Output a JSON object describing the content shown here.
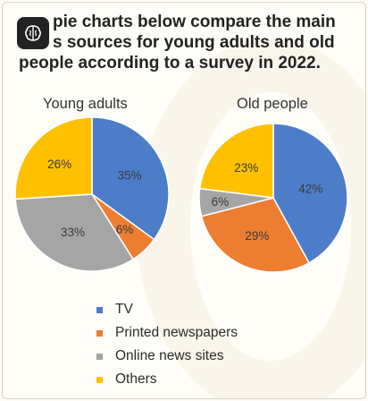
{
  "title": {
    "line1": "pie charts below compare the main",
    "line2": "s sources for young adults and old",
    "line3": "people according to a survey in 2022."
  },
  "chart_data": [
    {
      "type": "pie",
      "title": "Young adults",
      "slices": [
        {
          "label": "TV",
          "value": 35,
          "text": "35%",
          "color": "#4d7dc9"
        },
        {
          "label": "Printed newspapers",
          "value": 6,
          "text": "6%",
          "color": "#ed7d31"
        },
        {
          "label": "Online news sites",
          "value": 33,
          "text": "33%",
          "color": "#a5a5a5"
        },
        {
          "label": "Others",
          "value": 26,
          "text": "26%",
          "color": "#ffc000"
        }
      ]
    },
    {
      "type": "pie",
      "title": "Old people",
      "slices": [
        {
          "label": "TV",
          "value": 42,
          "text": "42%",
          "color": "#4d7dc9"
        },
        {
          "label": "Printed newspapers",
          "value": 29,
          "text": "29%",
          "color": "#ed7d31"
        },
        {
          "label": "Online news sites",
          "value": 6,
          "text": "6%",
          "color": "#a5a5a5"
        },
        {
          "label": "Others",
          "value": 23,
          "text": "23%",
          "color": "#ffc000"
        }
      ]
    }
  ],
  "legend": [
    {
      "label": "TV",
      "color": "#4d7dc9"
    },
    {
      "label": "Printed newspapers",
      "color": "#ed7d31"
    },
    {
      "label": "Online news sites",
      "color": "#a5a5a5"
    },
    {
      "label": "Others",
      "color": "#ffc000"
    }
  ],
  "badge_icon": "brain-icon"
}
